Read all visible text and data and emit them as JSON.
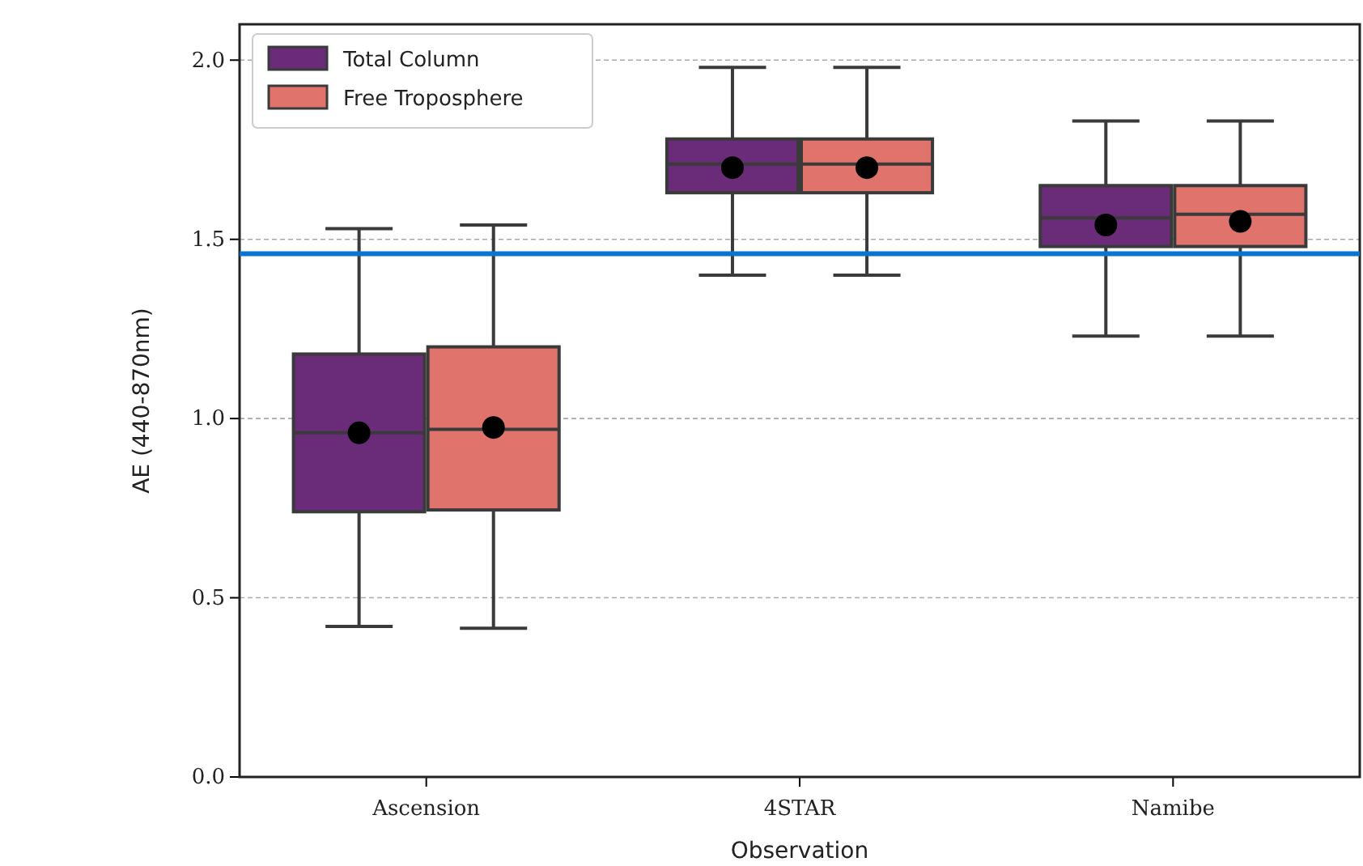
{
  "chart_data": {
    "type": "box",
    "xlabel": "Observation",
    "ylabel": "AE (440-870nm)",
    "categories": [
      "Ascension",
      "4STAR",
      "Namibe"
    ],
    "ylim": [
      0,
      2.1
    ],
    "yticks": [
      {
        "value": 0,
        "label": "0.0"
      },
      {
        "value": 0.5,
        "label": "0.5"
      },
      {
        "value": 1,
        "label": "1.0"
      },
      {
        "value": 1.5,
        "label": "1.5"
      },
      {
        "value": 2,
        "label": "2.0"
      }
    ],
    "grid": "y",
    "legend": "top left",
    "series": [
      {
        "name": "Total Column",
        "color": "#6a2c79",
        "boxes": [
          {
            "low": 0.42,
            "q1": 0.74,
            "median": 0.96,
            "q3": 1.18,
            "high": 1.53,
            "mean": 0.96
          },
          {
            "low": 1.4,
            "q1": 1.63,
            "median": 1.71,
            "q3": 1.78,
            "high": 1.98,
            "mean": 1.7
          },
          {
            "low": 1.23,
            "q1": 1.48,
            "median": 1.56,
            "q3": 1.65,
            "high": 1.83,
            "mean": 1.54
          }
        ]
      },
      {
        "name": "Free Troposphere",
        "color": "#e0736b",
        "boxes": [
          {
            "low": 0.415,
            "q1": 0.745,
            "median": 0.97,
            "q3": 1.2,
            "high": 1.54,
            "mean": 0.975
          },
          {
            "low": 1.4,
            "q1": 1.63,
            "median": 1.71,
            "q3": 1.78,
            "high": 1.98,
            "mean": 1.7
          },
          {
            "low": 1.23,
            "q1": 1.48,
            "median": 1.57,
            "q3": 1.65,
            "high": 1.83,
            "mean": 1.55
          }
        ]
      }
    ],
    "ref_lines": [
      {
        "axis": "y",
        "value": 1.46,
        "color": "#0a74d0"
      }
    ]
  }
}
